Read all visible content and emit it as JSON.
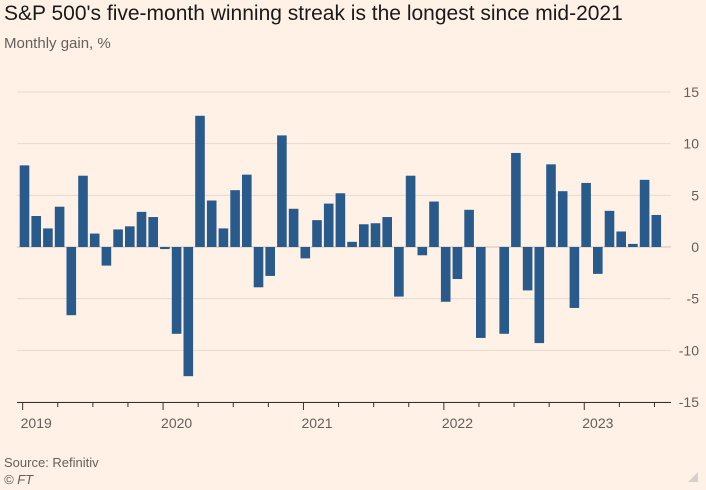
{
  "header": {
    "title": "S&P 500's five-month winning streak is the longest since mid-2021",
    "subtitle": "Monthly gain, %"
  },
  "footer": {
    "source": "Source: Refinitiv",
    "credit": "© FT"
  },
  "colors": {
    "bar": "#285a8c",
    "grid": "#e6d9ce",
    "zero_line": "#d0c3b8",
    "axis_text": "#66605c",
    "background": "#fff1e5"
  },
  "chart_data": {
    "type": "bar",
    "title": "S&P 500's five-month winning streak is the longest since mid-2021",
    "ylabel": "Monthly gain, %",
    "xlabel": "",
    "ylim": [
      -15,
      15
    ],
    "yticks": [
      15,
      10,
      5,
      0,
      -5,
      -10,
      -15
    ],
    "x_tick_labels": [
      {
        "label": "2019",
        "index": 0
      },
      {
        "label": "2020",
        "index": 12
      },
      {
        "label": "2021",
        "index": 24
      },
      {
        "label": "2022",
        "index": 36
      },
      {
        "label": "2023",
        "index": 48
      }
    ],
    "grid": true,
    "categories": [
      "Jan 2019",
      "Feb 2019",
      "Mar 2019",
      "Apr 2019",
      "May 2019",
      "Jun 2019",
      "Jul 2019",
      "Aug 2019",
      "Sep 2019",
      "Oct 2019",
      "Nov 2019",
      "Dec 2019",
      "Jan 2020",
      "Feb 2020",
      "Mar 2020",
      "Apr 2020",
      "May 2020",
      "Jun 2020",
      "Jul 2020",
      "Aug 2020",
      "Sep 2020",
      "Oct 2020",
      "Nov 2020",
      "Dec 2020",
      "Jan 2021",
      "Feb 2021",
      "Mar 2021",
      "Apr 2021",
      "May 2021",
      "Jun 2021",
      "Jul 2021",
      "Aug 2021",
      "Sep 2021",
      "Oct 2021",
      "Nov 2021",
      "Dec 2021",
      "Jan 2022",
      "Feb 2022",
      "Mar 2022",
      "Apr 2022",
      "May 2022",
      "Jun 2022",
      "Jul 2022",
      "Aug 2022",
      "Sep 2022",
      "Oct 2022",
      "Nov 2022",
      "Dec 2022",
      "Jan 2023",
      "Feb 2023",
      "Mar 2023",
      "Apr 2023",
      "May 2023",
      "Jun 2023",
      "Jul 2023"
    ],
    "values": [
      7.9,
      3.0,
      1.8,
      3.9,
      -6.6,
      6.9,
      1.3,
      -1.8,
      1.7,
      2.0,
      3.4,
      2.9,
      -0.2,
      -8.4,
      -12.5,
      12.7,
      4.5,
      1.8,
      5.5,
      7.0,
      -3.9,
      -2.8,
      10.8,
      3.7,
      -1.1,
      2.6,
      4.2,
      5.2,
      0.5,
      2.2,
      2.3,
      2.9,
      -4.8,
      6.9,
      -0.8,
      4.4,
      -5.3,
      -3.1,
      3.6,
      -8.8,
      0.0,
      -8.4,
      9.1,
      -4.2,
      -9.3,
      8.0,
      5.4,
      -5.9,
      6.2,
      -2.6,
      3.5,
      1.5,
      0.3,
      6.5,
      3.1
    ]
  }
}
